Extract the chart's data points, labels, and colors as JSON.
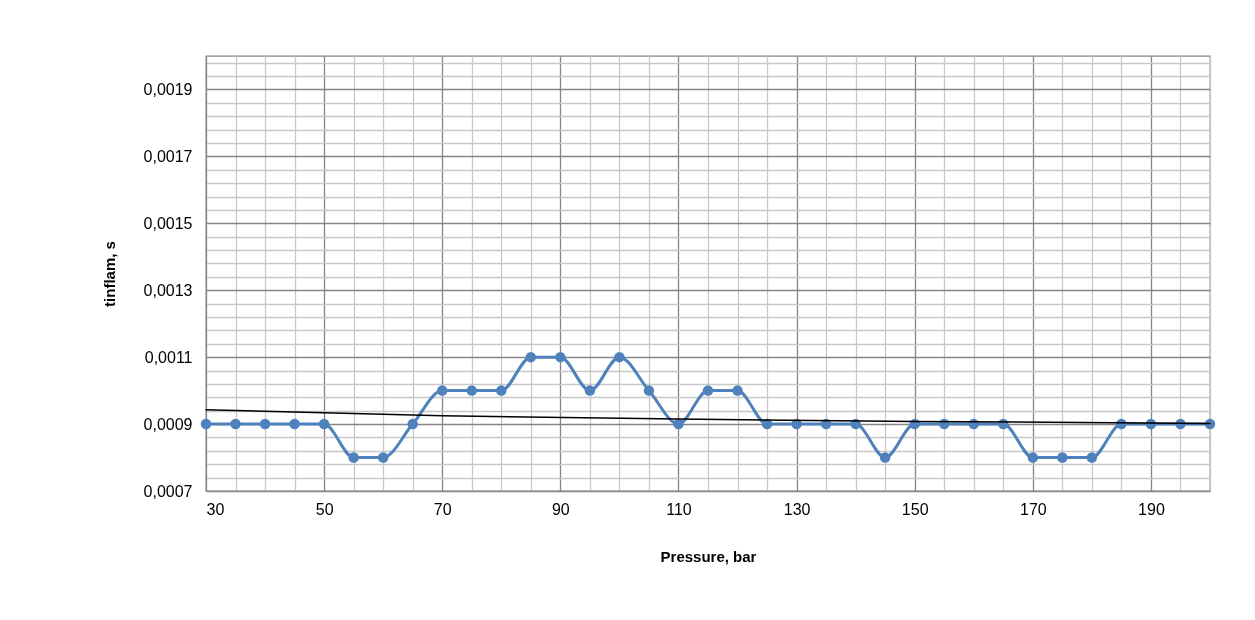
{
  "chart_data": {
    "type": "line",
    "xlabel": "Pressure, bar",
    "ylabel": "tinflam, s",
    "xlim": [
      30,
      200
    ],
    "ylim": [
      0.0007,
      0.002
    ],
    "xticks": [
      30,
      {
        "value": 35,
        "label": null
      },
      {
        "value": 40,
        "label": null
      },
      {
        "value": 45,
        "label": null
      },
      50,
      {
        "value": 55,
        "label": null
      },
      {
        "value": 60,
        "label": null
      },
      {
        "value": 65,
        "label": null
      },
      70,
      {
        "value": 75,
        "label": null
      },
      {
        "value": 80,
        "label": null
      },
      {
        "value": 85,
        "label": null
      },
      90,
      {
        "value": 95,
        "label": null
      },
      {
        "value": 100,
        "label": null
      },
      {
        "value": 105,
        "label": null
      },
      110,
      {
        "value": 115,
        "label": null
      },
      {
        "value": 120,
        "label": null
      },
      {
        "value": 125,
        "label": null
      },
      130,
      {
        "value": 135,
        "label": null
      },
      {
        "value": 140,
        "label": null
      },
      {
        "value": 145,
        "label": null
      },
      150,
      {
        "value": 155,
        "label": null
      },
      {
        "value": 160,
        "label": null
      },
      {
        "value": 165,
        "label": null
      },
      170,
      {
        "value": 175,
        "label": null
      },
      {
        "value": 180,
        "label": null
      },
      {
        "value": 185,
        "label": null
      },
      190,
      {
        "value": 195,
        "label": null
      },
      {
        "value": 200,
        "label": null
      }
    ],
    "yticks": [
      {
        "value": 0.0007,
        "label": "0,0007"
      },
      {
        "value": 0.00074,
        "label": null
      },
      {
        "value": 0.00078,
        "label": null
      },
      {
        "value": 0.00082,
        "label": null
      },
      {
        "value": 0.00086,
        "label": null
      },
      {
        "value": 0.0009,
        "label": "0,0009"
      },
      {
        "value": 0.00094,
        "label": null
      },
      {
        "value": 0.00098,
        "label": null
      },
      {
        "value": 0.00102,
        "label": null
      },
      {
        "value": 0.00106,
        "label": null
      },
      {
        "value": 0.0011,
        "label": "0,0011"
      },
      {
        "value": 0.00114,
        "label": null
      },
      {
        "value": 0.00118,
        "label": null
      },
      {
        "value": 0.00122,
        "label": null
      },
      {
        "value": 0.00126,
        "label": null
      },
      {
        "value": 0.0013,
        "label": "0,0013"
      },
      {
        "value": 0.00134,
        "label": null
      },
      {
        "value": 0.00138,
        "label": null
      },
      {
        "value": 0.00142,
        "label": null
      },
      {
        "value": 0.00146,
        "label": null
      },
      {
        "value": 0.0015,
        "label": "0,0015"
      },
      {
        "value": 0.00154,
        "label": null
      },
      {
        "value": 0.00158,
        "label": null
      },
      {
        "value": 0.00162,
        "label": null
      },
      {
        "value": 0.00166,
        "label": null
      },
      {
        "value": 0.0017,
        "label": "0,0017"
      },
      {
        "value": 0.00174,
        "label": null
      },
      {
        "value": 0.00178,
        "label": null
      },
      {
        "value": 0.00182,
        "label": null
      },
      {
        "value": 0.00186,
        "label": null
      },
      {
        "value": 0.0019,
        "label": "0,0019"
      },
      {
        "value": 0.00194,
        "label": null
      },
      {
        "value": 0.00198,
        "label": null
      }
    ],
    "grid": true,
    "line_style": "solid",
    "x": [
      30,
      35,
      40,
      45,
      50,
      55,
      60,
      65,
      70,
      75,
      80,
      85,
      90,
      95,
      100,
      105,
      110,
      115,
      120,
      125,
      130,
      135,
      140,
      145,
      150,
      155,
      160,
      165,
      170,
      175,
      180,
      185,
      190,
      195,
      200
    ],
    "series": [
      {
        "color": "#4f81bd",
        "marker": "circle",
        "values": [
          0.0009,
          0.0009,
          0.0009,
          0.0009,
          0.0009,
          0.0008,
          0.0008,
          0.0009,
          0.001,
          0.001,
          0.001,
          0.0011,
          0.0011,
          0.001,
          0.0011,
          0.001,
          0.0009,
          0.001,
          0.001,
          0.0009,
          0.0009,
          0.0009,
          0.0009,
          0.0008,
          0.0009,
          0.0009,
          0.0009,
          0.0009,
          0.0008,
          0.0008,
          0.0008,
          0.0009,
          0.0009,
          0.0009,
          0.0009
        ]
      },
      {
        "type": "line",
        "color": "#000000",
        "marker": "none",
        "x": [
          30,
          70,
          110,
          150,
          200
        ],
        "values": [
          0.000943,
          0.000925,
          0.000915,
          0.000908,
          0.000902
        ]
      }
    ]
  }
}
